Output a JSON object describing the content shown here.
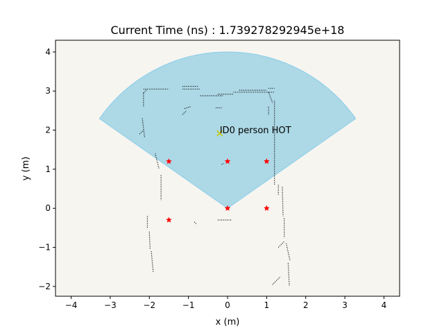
{
  "chart_data": {
    "type": "scatter",
    "title": "Current Time (ns) : 1.739278292945e+18",
    "xlabel": "x (m)",
    "ylabel": "y (m)",
    "xlim": [
      -4.4,
      4.4
    ],
    "ylim": [
      -2.25,
      4.3
    ],
    "xticks": [
      -4,
      -3,
      -2,
      -1,
      0,
      1,
      2,
      3,
      4
    ],
    "yticks": [
      -2,
      -1,
      0,
      1,
      2,
      3,
      4
    ],
    "xtick_labels": [
      "−4",
      "−3",
      "−2",
      "−1",
      "0",
      "1",
      "2",
      "3",
      "4"
    ],
    "ytick_labels": [
      "−2",
      "−1",
      "0",
      "1",
      "2",
      "3",
      "4"
    ],
    "grid": false,
    "colors": {
      "plot_bg": "#f7f5f0",
      "sector_fill": "#add8e6",
      "sector_edge": "#87ceeb",
      "marker": "#ff0000",
      "person": "#c8c800",
      "occupancy": "#000000"
    },
    "sensor_sector": {
      "origin": [
        0,
        0
      ],
      "radius": 4.0,
      "angle_start_deg": 35,
      "angle_end_deg": 145
    },
    "star_markers": {
      "x": [
        -1.5,
        0,
        1,
        -1.5,
        0,
        1
      ],
      "y": [
        1.2,
        1.2,
        1.2,
        -0.3,
        0,
        0
      ]
    },
    "person": {
      "x": -0.2,
      "y": 1.92,
      "label": "ID0 person HOT"
    },
    "occupancy_segments": [
      [
        [
          -2.15,
          3.05
        ],
        [
          -1.5,
          3.05
        ]
      ],
      [
        [
          -2.15,
          2.95
        ],
        [
          -2.05,
          3.05
        ]
      ],
      [
        [
          -2.15,
          2.95
        ],
        [
          -2.15,
          2.6
        ]
      ],
      [
        [
          -2.18,
          2.3
        ],
        [
          -2.12,
          1.8
        ]
      ],
      [
        [
          -2.25,
          1.9
        ],
        [
          -2.15,
          2.0
        ]
      ],
      [
        [
          -1.15,
          3.12
        ],
        [
          -0.75,
          3.12
        ]
      ],
      [
        [
          -1.15,
          3.05
        ],
        [
          -0.7,
          3.05
        ]
      ],
      [
        [
          -0.7,
          2.88
        ],
        [
          -0.1,
          2.88
        ]
      ],
      [
        [
          -0.25,
          2.92
        ],
        [
          0.15,
          2.92
        ]
      ],
      [
        [
          0.15,
          2.97
        ],
        [
          1.2,
          2.97
        ]
      ],
      [
        [
          0.3,
          3.02
        ],
        [
          1.0,
          3.02
        ]
      ],
      [
        [
          1.05,
          3.07
        ],
        [
          1.2,
          3.07
        ]
      ],
      [
        [
          1.05,
          2.97
        ],
        [
          1.15,
          2.7
        ]
      ],
      [
        [
          1.05,
          2.6
        ],
        [
          1.05,
          2.4
        ]
      ],
      [
        [
          -1.1,
          2.55
        ],
        [
          -0.95,
          2.6
        ]
      ],
      [
        [
          -1.15,
          2.4
        ],
        [
          -1.05,
          2.5
        ]
      ],
      [
        [
          -0.3,
          2.57
        ],
        [
          -0.15,
          2.57
        ]
      ],
      [
        [
          1.2,
          2.75
        ],
        [
          1.2,
          0.6
        ]
      ],
      [
        [
          1.3,
          0.6
        ],
        [
          1.3,
          0.35
        ]
      ],
      [
        [
          1.4,
          0.55
        ],
        [
          1.42,
          -0.2
        ]
      ],
      [
        [
          1.45,
          -0.25
        ],
        [
          1.45,
          -0.75
        ]
      ],
      [
        [
          1.3,
          -1.0
        ],
        [
          1.45,
          -0.85
        ]
      ],
      [
        [
          1.5,
          -0.9
        ],
        [
          1.6,
          -1.35
        ]
      ],
      [
        [
          1.55,
          -1.4
        ],
        [
          1.58,
          -2.0
        ]
      ],
      [
        [
          1.15,
          -1.95
        ],
        [
          1.35,
          -1.75
        ]
      ],
      [
        [
          -1.85,
          1.4
        ],
        [
          -1.75,
          1.0
        ]
      ],
      [
        [
          -1.7,
          0.85
        ],
        [
          -1.7,
          0.2
        ]
      ],
      [
        [
          -2.05,
          -0.2
        ],
        [
          -2.05,
          -0.5
        ]
      ],
      [
        [
          -2.0,
          -0.6
        ],
        [
          -1.98,
          -1.05
        ]
      ],
      [
        [
          -1.95,
          -1.1
        ],
        [
          -1.9,
          -1.65
        ]
      ],
      [
        [
          -0.25,
          -0.3
        ],
        [
          0.1,
          -0.3
        ]
      ],
      [
        [
          -0.85,
          -0.35
        ],
        [
          -0.8,
          -0.4
        ]
      ],
      [
        [
          -0.15,
          1.12
        ],
        [
          -0.1,
          1.15
        ]
      ]
    ]
  }
}
